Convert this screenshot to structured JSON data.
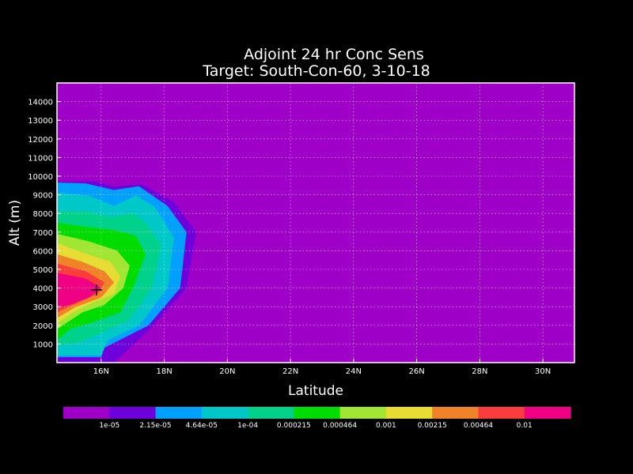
{
  "chart_data": {
    "type": "heatmap",
    "title": "Adjoint 24 hr Conc Sens",
    "subtitle": "Target: South-Con-60, 3-10-18",
    "xlabel": "Latitude",
    "ylabel": "Alt (m)",
    "xlim": [
      14.6,
      31.0
    ],
    "ylim": [
      0,
      15000
    ],
    "x_ticks": [
      {
        "value": 16,
        "label": "16N"
      },
      {
        "value": 18,
        "label": "18N"
      },
      {
        "value": 20,
        "label": "20N"
      },
      {
        "value": 22,
        "label": "22N"
      },
      {
        "value": 24,
        "label": "24N"
      },
      {
        "value": 26,
        "label": "26N"
      },
      {
        "value": 28,
        "label": "28N"
      },
      {
        "value": 30,
        "label": "30N"
      }
    ],
    "y_ticks": [
      1000,
      2000,
      3000,
      4000,
      5000,
      6000,
      7000,
      8000,
      9000,
      10000,
      11000,
      12000,
      13000,
      14000
    ],
    "grid": true,
    "background_color": "#000000",
    "colors": [
      "#9f00c8",
      "#6e00dc",
      "#00a0ff",
      "#00c8c8",
      "#00d28c",
      "#00dc00",
      "#a0e632",
      "#e6dc32",
      "#f08228",
      "#fa3c3c",
      "#f00082"
    ],
    "levels": [
      "1e-05",
      "2.15e-05",
      "4.64e-05",
      "1e-04",
      "0.000215",
      "0.000464",
      "0.001",
      "0.00215",
      "0.00464",
      "0.01"
    ],
    "marker": {
      "symbol": "+",
      "lat": 15.85,
      "alt": 3900
    },
    "contour_regions": [
      {
        "level_index": 1,
        "points": [
          [
            14.6,
            0
          ],
          [
            14.6,
            9700
          ],
          [
            15.8,
            9700
          ],
          [
            16.4,
            9450
          ],
          [
            17.3,
            9550
          ],
          [
            18.3,
            8600
          ],
          [
            19.0,
            7000
          ],
          [
            18.7,
            4000
          ],
          [
            17.6,
            1900
          ],
          [
            16.4,
            0
          ]
        ]
      },
      {
        "level_index": 2,
        "points": [
          [
            14.6,
            0
          ],
          [
            14.6,
            9650
          ],
          [
            15.5,
            9600
          ],
          [
            16.4,
            9250
          ],
          [
            17.2,
            9450
          ],
          [
            18.1,
            8400
          ],
          [
            18.7,
            7000
          ],
          [
            18.5,
            4000
          ],
          [
            17.5,
            2000
          ],
          [
            16.1,
            800
          ],
          [
            16.0,
            300
          ],
          [
            14.6,
            300
          ]
        ]
      },
      {
        "level_index": 3,
        "points": [
          [
            14.6,
            400
          ],
          [
            14.6,
            9100
          ],
          [
            15.6,
            8950
          ],
          [
            16.4,
            8400
          ],
          [
            17.1,
            8950
          ],
          [
            17.7,
            8350
          ],
          [
            18.3,
            6700
          ],
          [
            18.1,
            4000
          ],
          [
            17.2,
            2000
          ],
          [
            16.2,
            1200
          ],
          [
            16.0,
            400
          ]
        ]
      },
      {
        "level_index": 4,
        "points": [
          [
            14.6,
            900
          ],
          [
            14.6,
            8100
          ],
          [
            15.5,
            8100
          ],
          [
            16.3,
            7800
          ],
          [
            17.0,
            8000
          ],
          [
            17.4,
            7500
          ],
          [
            17.9,
            6300
          ],
          [
            17.6,
            4000
          ],
          [
            16.9,
            2300
          ],
          [
            16.0,
            1600
          ],
          [
            15.3,
            1100
          ]
        ]
      },
      {
        "level_index": 5,
        "points": [
          [
            14.6,
            1200
          ],
          [
            14.6,
            7500
          ],
          [
            15.4,
            7300
          ],
          [
            16.4,
            7100
          ],
          [
            17.1,
            6800
          ],
          [
            17.4,
            5800
          ],
          [
            17.0,
            4000
          ],
          [
            16.6,
            2700
          ],
          [
            15.6,
            2100
          ],
          [
            15.0,
            1800
          ]
        ]
      },
      {
        "level_index": 6,
        "points": [
          [
            14.6,
            1800
          ],
          [
            14.6,
            6900
          ],
          [
            15.6,
            6500
          ],
          [
            16.5,
            6000
          ],
          [
            16.9,
            5200
          ],
          [
            16.7,
            4000
          ],
          [
            16.1,
            3100
          ],
          [
            15.4,
            2700
          ]
        ]
      },
      {
        "level_index": 7,
        "points": [
          [
            14.6,
            2100
          ],
          [
            14.6,
            6400
          ],
          [
            15.4,
            5900
          ],
          [
            16.3,
            5400
          ],
          [
            16.6,
            4600
          ],
          [
            16.4,
            3700
          ],
          [
            15.7,
            3200
          ],
          [
            15.1,
            2700
          ]
        ]
      },
      {
        "level_index": 8,
        "points": [
          [
            14.6,
            2400
          ],
          [
            14.6,
            5800
          ],
          [
            15.4,
            5400
          ],
          [
            16.1,
            4900
          ],
          [
            16.4,
            4300
          ],
          [
            16.0,
            3500
          ],
          [
            15.2,
            3000
          ]
        ]
      },
      {
        "level_index": 9,
        "points": [
          [
            14.6,
            2700
          ],
          [
            14.6,
            5300
          ],
          [
            15.5,
            4900
          ],
          [
            16.1,
            4300
          ],
          [
            15.9,
            3700
          ],
          [
            15.1,
            3100
          ]
        ]
      },
      {
        "level_index": 10,
        "points": [
          [
            14.6,
            2950
          ],
          [
            14.6,
            4800
          ],
          [
            15.5,
            4500
          ],
          [
            16.0,
            4000
          ],
          [
            15.6,
            3500
          ],
          [
            15.0,
            3100
          ]
        ]
      }
    ]
  }
}
